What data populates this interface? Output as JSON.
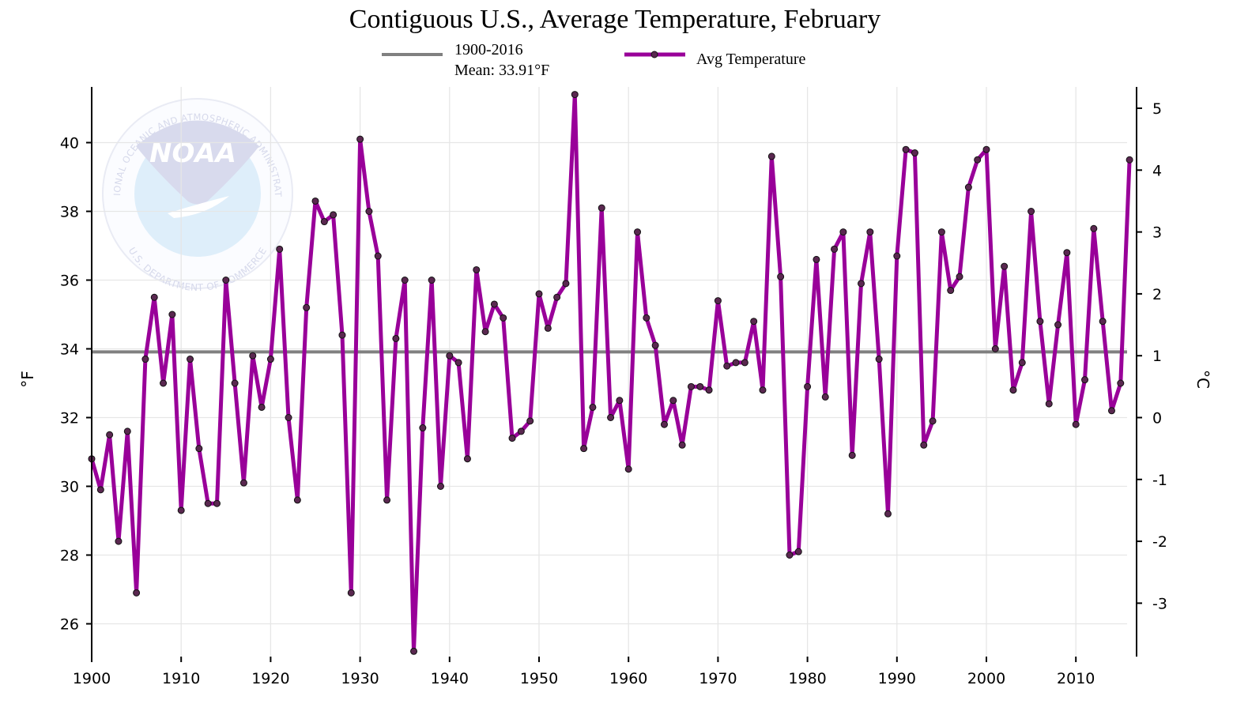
{
  "chart_data": {
    "type": "line",
    "title": "Contiguous U.S., Average Temperature, February",
    "ylabel_left": "°F",
    "ylabel_right": "°C",
    "xlim": [
      1900,
      2016
    ],
    "ylim_f": [
      25,
      41.6
    ],
    "x_ticks": [
      1900,
      1910,
      1920,
      1930,
      1940,
      1950,
      1960,
      1970,
      1980,
      1990,
      2000,
      2010
    ],
    "y_ticks_f": [
      26,
      28,
      30,
      32,
      34,
      36,
      38,
      40
    ],
    "y_ticks_c": [
      -3,
      -2,
      -1,
      0,
      1,
      2,
      3,
      4,
      5
    ],
    "grid": true,
    "legend": {
      "position": "top-center",
      "mean_line_1": "1900-2016",
      "mean_line_2": "Mean: 33.91°F",
      "series_label": "Avg Temperature"
    },
    "mean_value": 33.91,
    "colors": {
      "series": "#990099",
      "mean": "#808080",
      "marker_fill": "#5a2850",
      "grid": "#e6e6e6"
    },
    "watermark": {
      "center": "NOAA",
      "top_arc": "NATIONAL OCEANIC AND ATMOSPHERIC ADMINISTRATION",
      "bottom_arc": "U.S. DEPARTMENT OF COMMERCE"
    },
    "series": [
      {
        "name": "Avg Temperature",
        "x": [
          1900,
          1901,
          1902,
          1903,
          1904,
          1905,
          1906,
          1907,
          1908,
          1909,
          1910,
          1911,
          1912,
          1913,
          1914,
          1915,
          1916,
          1917,
          1918,
          1919,
          1920,
          1921,
          1922,
          1923,
          1924,
          1925,
          1926,
          1927,
          1928,
          1929,
          1930,
          1931,
          1932,
          1933,
          1934,
          1935,
          1936,
          1937,
          1938,
          1939,
          1940,
          1941,
          1942,
          1943,
          1944,
          1945,
          1946,
          1947,
          1948,
          1949,
          1950,
          1951,
          1952,
          1953,
          1954,
          1955,
          1956,
          1957,
          1958,
          1959,
          1960,
          1961,
          1962,
          1963,
          1964,
          1965,
          1966,
          1967,
          1968,
          1969,
          1970,
          1971,
          1972,
          1973,
          1974,
          1975,
          1976,
          1977,
          1978,
          1979,
          1980,
          1981,
          1982,
          1983,
          1984,
          1985,
          1986,
          1987,
          1988,
          1989,
          1990,
          1991,
          1992,
          1993,
          1994,
          1995,
          1996,
          1997,
          1998,
          1999,
          2000,
          2001,
          2002,
          2003,
          2004,
          2005,
          2006,
          2007,
          2008,
          2009,
          2010,
          2011,
          2012,
          2013,
          2014,
          2015,
          2016
        ],
        "values": [
          30.8,
          29.9,
          31.5,
          28.4,
          31.6,
          26.9,
          33.7,
          35.5,
          33.0,
          35.0,
          29.3,
          33.7,
          31.1,
          29.5,
          29.5,
          36.0,
          33.0,
          30.1,
          33.8,
          32.3,
          33.7,
          36.9,
          32.0,
          29.6,
          35.2,
          38.3,
          37.7,
          37.9,
          34.4,
          26.9,
          40.1,
          38.0,
          36.7,
          29.6,
          34.3,
          36.0,
          25.2,
          31.7,
          36.0,
          30.0,
          33.8,
          33.6,
          30.8,
          36.3,
          34.5,
          35.3,
          34.9,
          31.4,
          31.6,
          31.9,
          35.6,
          34.6,
          35.5,
          35.9,
          41.4,
          31.1,
          32.3,
          38.1,
          32.0,
          32.5,
          30.5,
          37.4,
          34.9,
          34.1,
          31.8,
          32.5,
          31.2,
          32.9,
          32.9,
          32.8,
          35.4,
          33.5,
          33.6,
          33.6,
          34.8,
          32.8,
          39.6,
          36.1,
          28.0,
          28.1,
          32.9,
          36.6,
          32.6,
          36.9,
          37.4,
          30.9,
          35.9,
          37.4,
          33.7,
          29.2,
          36.7,
          39.8,
          39.7,
          31.2,
          31.9,
          37.4,
          35.7,
          36.1,
          38.7,
          39.5,
          39.8,
          34.0,
          36.4,
          32.8,
          33.6,
          38.0,
          34.8,
          32.4,
          34.7,
          36.8,
          31.8,
          33.1,
          37.5,
          34.8,
          32.2,
          33.0,
          39.5
        ]
      }
    ]
  }
}
